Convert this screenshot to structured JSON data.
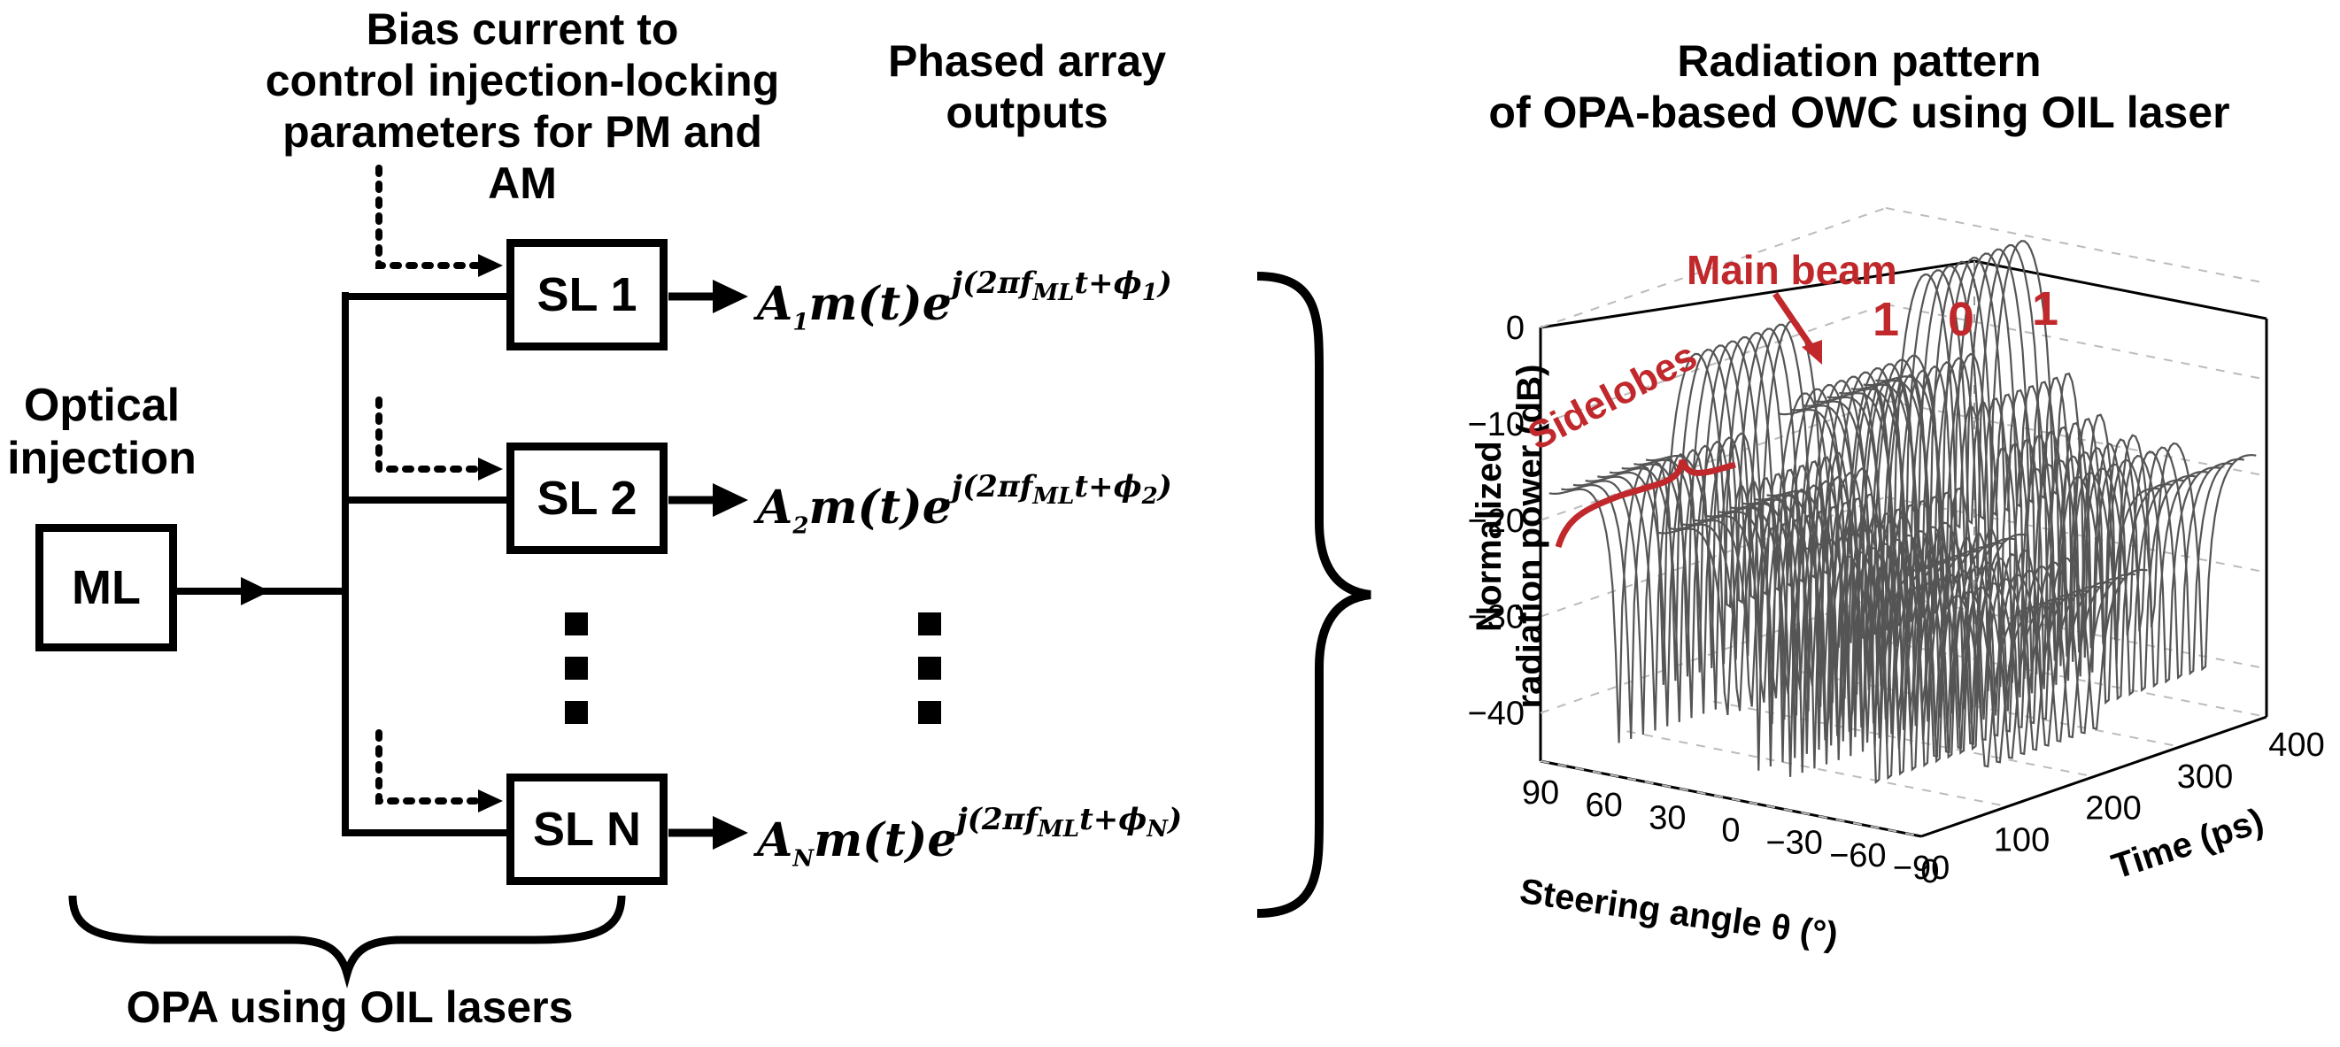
{
  "headers": {
    "bias": [
      "Bias current to",
      "control injection-locking",
      "parameters for PM and AM"
    ],
    "phased": [
      "Phased array",
      "outputs"
    ],
    "radiation": [
      "Radiation pattern",
      "of OPA-based OWC using OIL laser"
    ]
  },
  "injection_label": [
    "Optical",
    "injection"
  ],
  "master_laser": "ML",
  "slave_lasers": [
    "SL 1",
    "SL 2",
    "SL N"
  ],
  "outputs": [
    {
      "amp": "A",
      "idx": "1",
      "phase_idx": "1"
    },
    {
      "amp": "A",
      "idx": "2",
      "phase_idx": "2"
    },
    {
      "amp": "A",
      "idx": "N",
      "phase_idx": "N"
    }
  ],
  "output_expr": {
    "body": "m(t)e",
    "exp_head": "j(2πf",
    "exp_sub": "ML",
    "exp_tail": "t+ϕ",
    "close": ")"
  },
  "opa_label": "OPA using OIL lasers",
  "chart_data": {
    "type": "3d-surface-waterfall",
    "title": "Radiation pattern of OPA-based OWC using OIL laser",
    "zlabel": [
      "Normalized",
      "radiation power (dB)"
    ],
    "xlabel": "Steering angle θ (°)",
    "ylabel": "Time (ps)",
    "z_ticks": [
      "0",
      "−10",
      "−20",
      "−30",
      "−40"
    ],
    "z_range": [
      -45,
      0
    ],
    "angle_ticks": [
      "90",
      "60",
      "30",
      "0",
      "−30",
      "−60",
      "−90"
    ],
    "angle_range": [
      90,
      -90
    ],
    "time_ticks": [
      "0",
      "100",
      "200",
      "300",
      "400"
    ],
    "time_range": [
      0,
      400
    ],
    "bit_sequence": [
      "1",
      "0",
      "1"
    ],
    "annotations": {
      "main_beam": "Main beam",
      "sidelobes": "Sidelobes"
    },
    "colors": {
      "annotation": "#c0282b",
      "curve": "#555555",
      "grid": "#bbbbbb"
    }
  }
}
